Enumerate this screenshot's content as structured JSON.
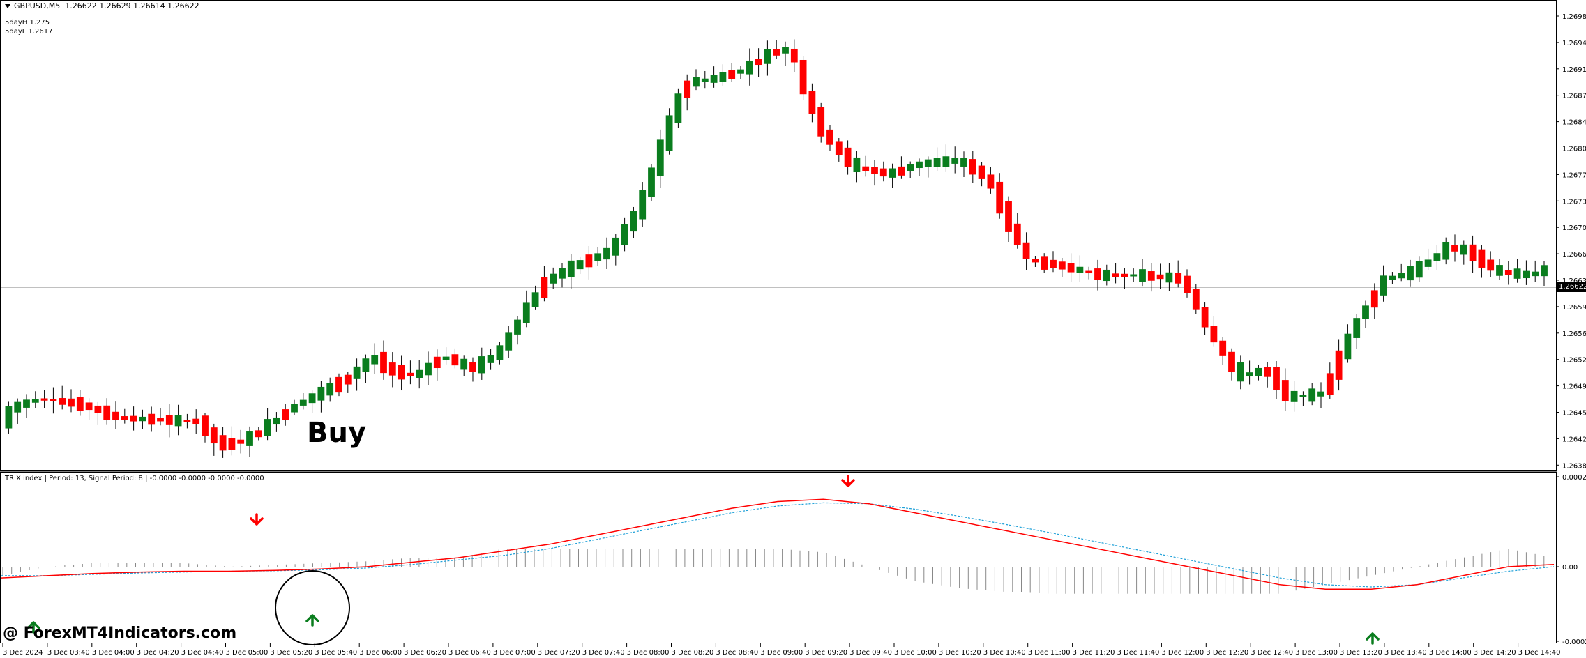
{
  "header": {
    "symbol": "GBPUSD,M5",
    "ohlc": "1.26622 1.26629 1.26614 1.26622",
    "info_lines": [
      "5dayH 1.275",
      "5dayL 1.2617"
    ]
  },
  "colors": {
    "bull": "#0a7d1e",
    "bear": "#ff0000",
    "trix_line": "#ff0000",
    "signal_line": "#1ea0d8",
    "histogram": "#888888",
    "arrow_up": "#0a7d1e",
    "arrow_down": "#ff0000"
  },
  "price_axis": {
    "labels": [
      "1.26980",
      "1.26945",
      "1.26910",
      "1.26875",
      "1.26840",
      "1.26805",
      "1.26770",
      "1.26735",
      "1.26700",
      "1.26665",
      "1.26630",
      "1.26595",
      "1.26560",
      "1.26525",
      "1.26490",
      "1.26455",
      "1.26420",
      "1.26385"
    ],
    "min": 1.26385,
    "max": 1.2698,
    "current_price": "1.26622"
  },
  "time_axis": {
    "labels": [
      "3 Dec 2024",
      "3 Dec 03:40",
      "3 Dec 04:00",
      "3 Dec 04:20",
      "3 Dec 04:40",
      "3 Dec 05:00",
      "3 Dec 05:20",
      "3 Dec 05:40",
      "3 Dec 06:00",
      "3 Dec 06:20",
      "3 Dec 06:40",
      "3 Dec 07:00",
      "3 Dec 07:20",
      "3 Dec 07:40",
      "3 Dec 08:00",
      "3 Dec 08:20",
      "3 Dec 08:40",
      "3 Dec 09:00",
      "3 Dec 09:20",
      "3 Dec 09:40",
      "3 Dec 10:00",
      "3 Dec 10:20",
      "3 Dec 10:40",
      "3 Dec 11:00",
      "3 Dec 11:20",
      "3 Dec 11:40",
      "3 Dec 12:00",
      "3 Dec 12:20",
      "3 Dec 12:40",
      "3 Dec 13:00",
      "3 Dec 13:20",
      "3 Dec 13:40",
      "3 Dec 14:00",
      "3 Dec 14:20",
      "3 Dec 14:40"
    ]
  },
  "indicator": {
    "label": "TRIX index | Period: 13, Signal Period: 8 | -0.0000 -0.0000 -0.0000 -0.0000",
    "axis_labels": [
      "0.0002",
      "0.00",
      "-0.0002"
    ],
    "min": -0.0002,
    "max": 0.0002,
    "trix": [
      -2.5e-05,
      -2e-05,
      -1.5e-05,
      -1.2e-05,
      -1e-05,
      -1e-05,
      -8e-06,
      -5e-06,
      0.0,
      1e-05,
      2e-05,
      3.5e-05,
      5e-05,
      7e-05,
      9e-05,
      0.00011,
      0.00013,
      0.000145,
      0.00015,
      0.00014,
      0.00012,
      0.0001,
      8e-05,
      6e-05,
      4e-05,
      2e-05,
      -0.0,
      -2e-05,
      -4e-05,
      -5e-05,
      -5e-05,
      -4e-05,
      -2e-05,
      0.0,
      5e-06
    ],
    "signal": [
      -2e-05,
      -2e-05,
      -1.7e-05,
      -1.4e-05,
      -1.2e-05,
      -1e-05,
      -9e-06,
      -7e-06,
      -3e-06,
      5e-06,
      1.5e-05,
      2.5e-05,
      4e-05,
      6e-05,
      8e-05,
      0.0001,
      0.00012,
      0.000135,
      0.000142,
      0.00014,
      0.000128,
      0.000112,
      9.4e-05,
      7.5e-05,
      5.5e-05,
      3.5e-05,
      1.5e-05,
      -5e-06,
      -2.5e-05,
      -4e-05,
      -4.5e-05,
      -4e-05,
      -2.5e-05,
      -1e-05,
      0.0
    ]
  },
  "annotations": {
    "buy_label": "Buy",
    "watermark": "@ ForexMT4Indicators.com"
  },
  "candles": []
}
